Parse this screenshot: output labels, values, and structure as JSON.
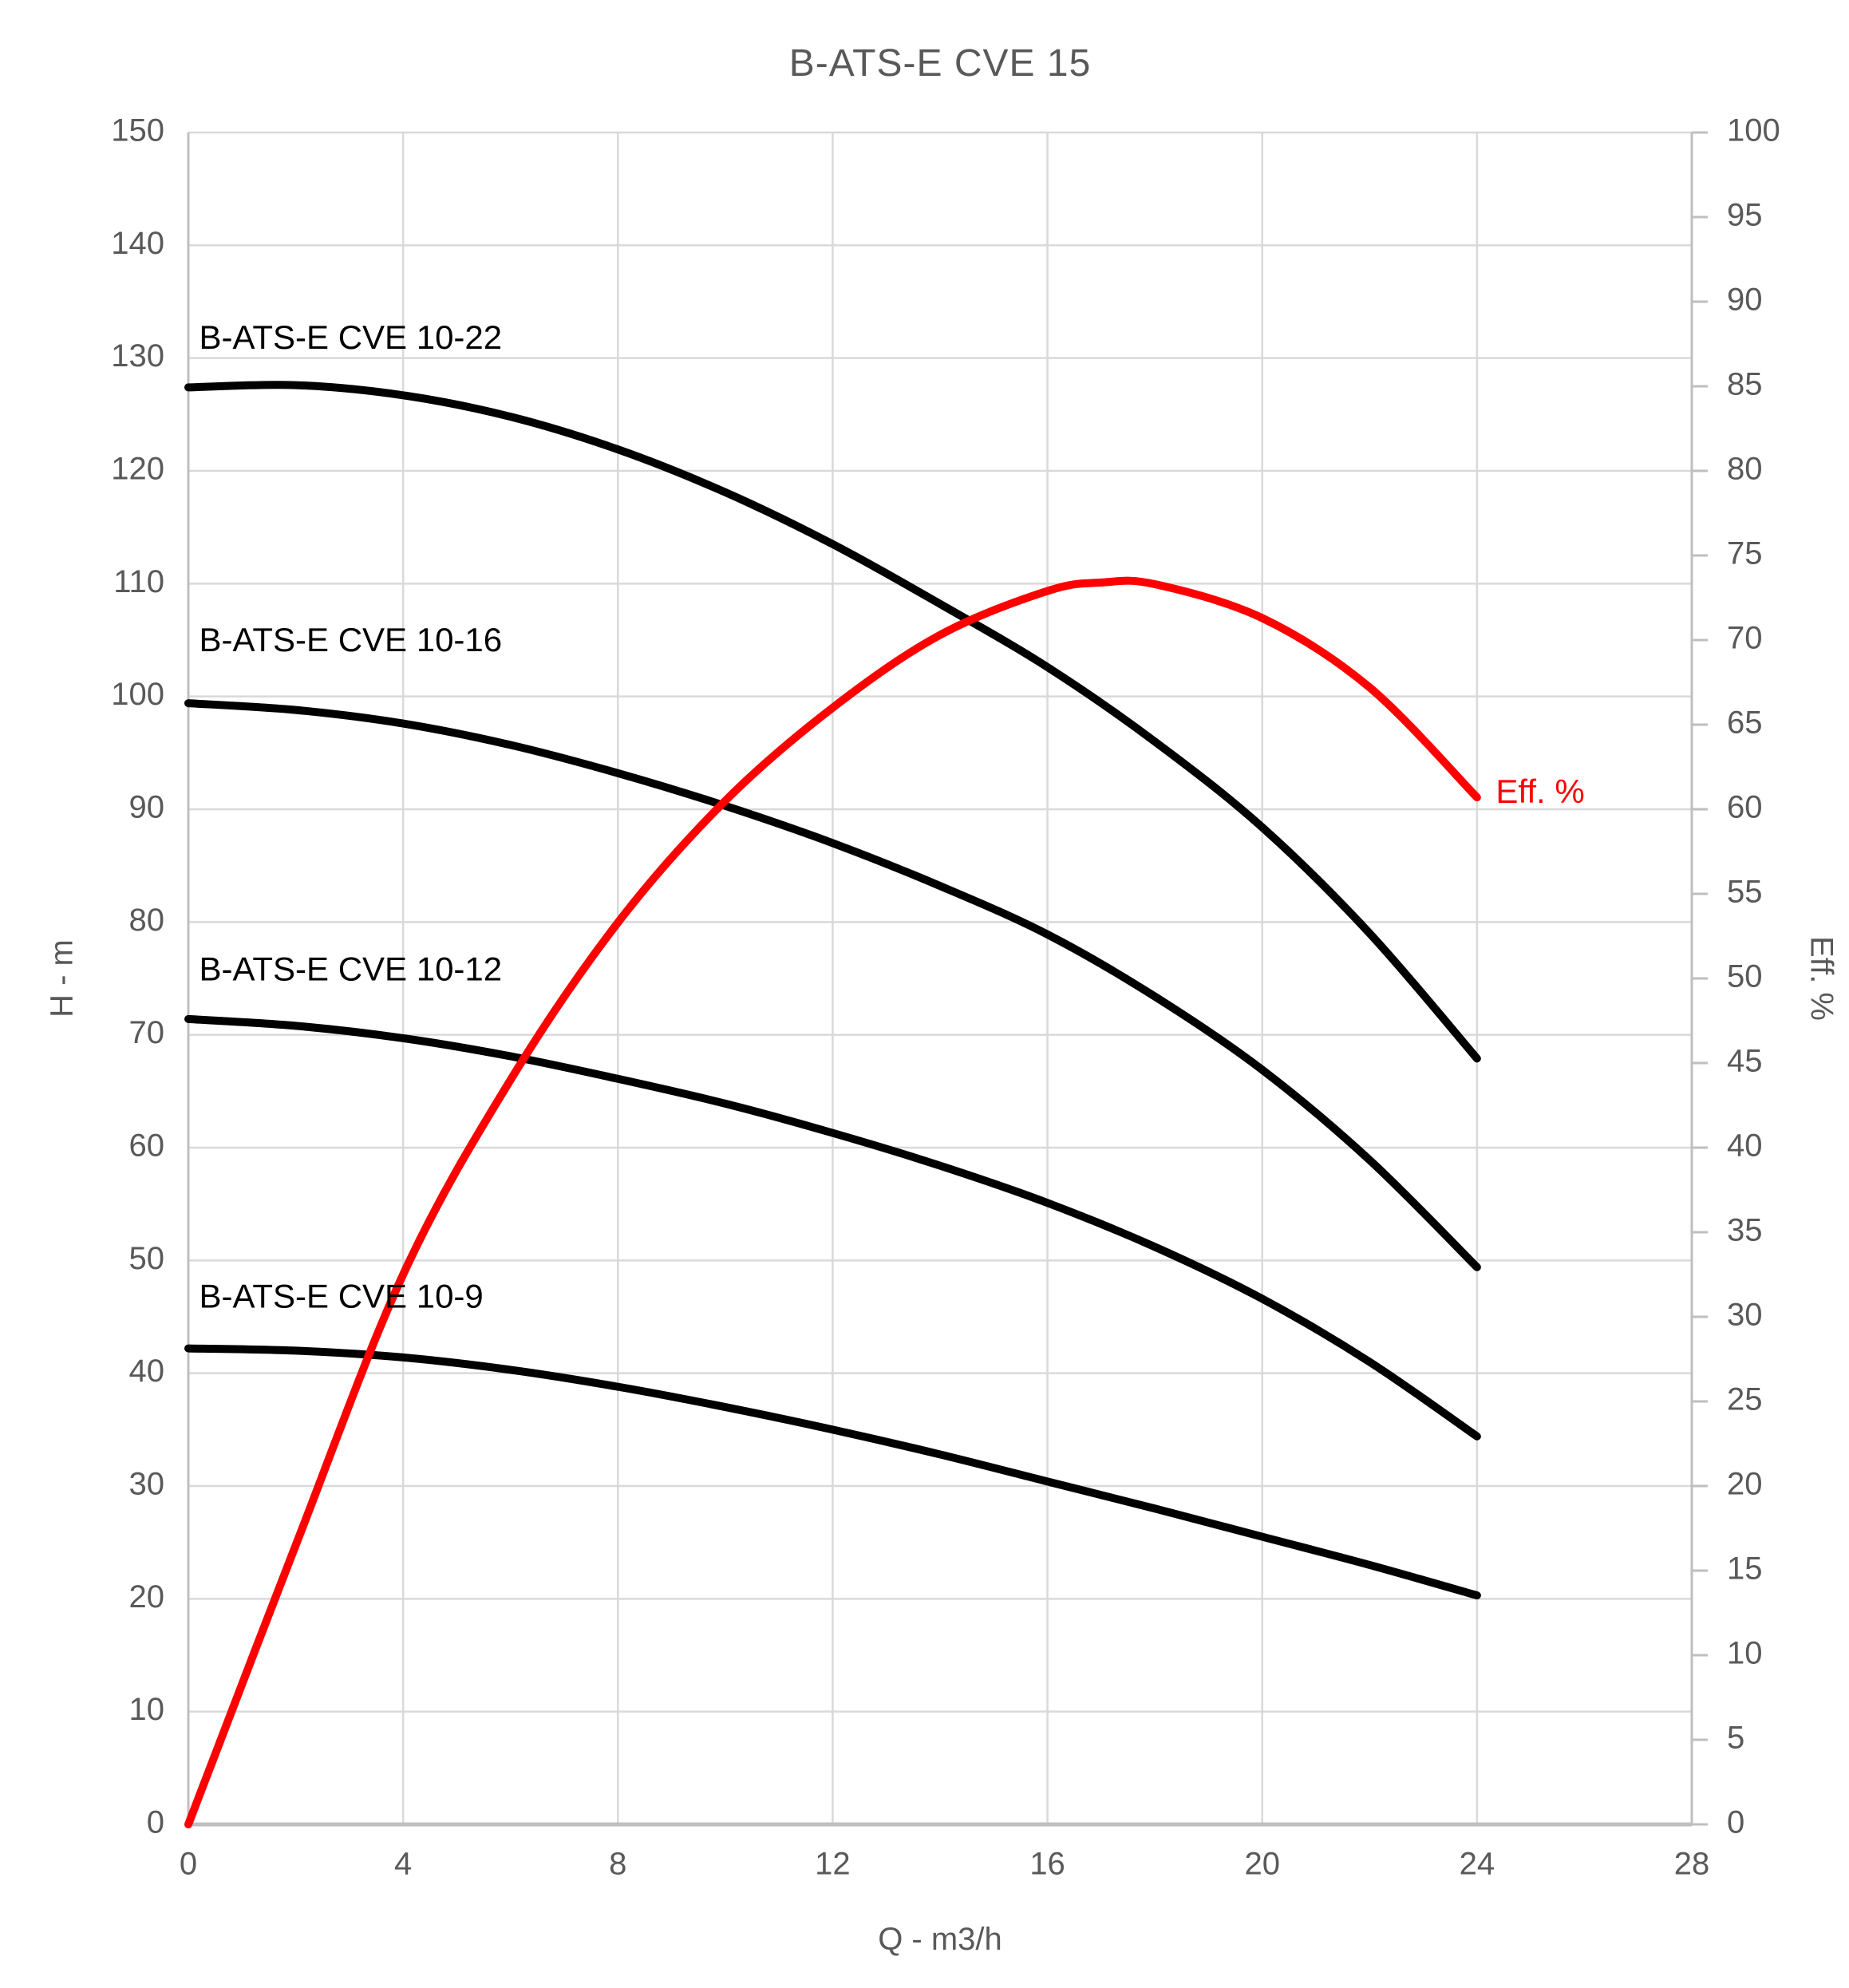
{
  "title": "B-ATS-E CVE 15",
  "colors": {
    "background": "#ffffff",
    "curve_black": "#000000",
    "efficiency_red": "#ff0000",
    "gridline": "#d9d9d9",
    "axis_line": "#bfbfbf",
    "tick_text": "#595959",
    "title_text": "#595959"
  },
  "chart_data": {
    "type": "line",
    "title": "B-ATS-E CVE 15",
    "xlabel": "Q - m3/h",
    "ylabel_left": "H - m",
    "ylabel_right": "Eff. %",
    "x_axis": {
      "min": 0,
      "max": 28,
      "tick_step": 4
    },
    "y_axis_left": {
      "min": 0,
      "max": 150,
      "tick_step": 10
    },
    "y_axis_right": {
      "min": 0,
      "max": 100,
      "tick_step": 5
    },
    "grid": {
      "horizontal_every_left_units": 10,
      "vertical_every_x_units": 4
    },
    "legend_position": "none",
    "series": [
      {
        "name": "B-ATS-E CVE 10-22",
        "axis": "left",
        "color": "#000000",
        "x": [
          0,
          2,
          4,
          6,
          8,
          10,
          12,
          14,
          16,
          18,
          20,
          22,
          24
        ],
        "values": [
          127.4,
          127.6,
          126.7,
          124.8,
          121.9,
          118.1,
          113.5,
          108.2,
          102.6,
          96.0,
          88.4,
          79.0,
          67.9
        ],
        "label": {
          "text": "B-ATS-E CVE 10-22",
          "x": 0.2,
          "y": 131.6
        }
      },
      {
        "name": "B-ATS-E CVE 10-16",
        "axis": "left",
        "color": "#000000",
        "x": [
          0,
          2,
          4,
          6,
          8,
          10,
          12,
          14,
          16,
          18,
          20,
          22,
          24
        ],
        "values": [
          99.4,
          98.8,
          97.6,
          95.7,
          93.2,
          90.3,
          87.0,
          83.2,
          78.9,
          73.4,
          66.9,
          58.9,
          49.4
        ],
        "label": {
          "text": "B-ATS-E CVE 10-16",
          "x": 0.2,
          "y": 104.8
        }
      },
      {
        "name": "B-ATS-E CVE 10-12",
        "axis": "left",
        "color": "#000000",
        "x": [
          0,
          2,
          4,
          6,
          8,
          10,
          12,
          14,
          16,
          18,
          20,
          22,
          24
        ],
        "values": [
          71.4,
          70.8,
          69.7,
          68.1,
          66.1,
          63.9,
          61.3,
          58.4,
          55.1,
          51.2,
          46.6,
          41.0,
          34.4
        ],
        "label": {
          "text": "B-ATS-E CVE 10-12",
          "x": 0.2,
          "y": 75.6
        }
      },
      {
        "name": "B-ATS-E CVE 10-9",
        "axis": "left",
        "color": "#000000",
        "x": [
          0,
          2,
          4,
          6,
          8,
          10,
          12,
          14,
          16,
          18,
          20,
          22,
          24
        ],
        "values": [
          42.2,
          42.0,
          41.4,
          40.3,
          38.8,
          37.0,
          35.0,
          32.8,
          30.4,
          28.0,
          25.5,
          23.0,
          20.3
        ],
        "label": {
          "text": "B-ATS-E CVE 10-9",
          "x": 0.2,
          "y": 46.6
        }
      },
      {
        "name": "Eff. %",
        "axis": "right",
        "color": "#ff0000",
        "x": [
          0,
          2,
          4,
          6,
          8,
          10,
          12,
          14,
          16,
          17,
          18,
          20,
          22,
          24
        ],
        "values": [
          0,
          16.5,
          32.5,
          44.0,
          53.3,
          60.5,
          66.0,
          70.3,
          72.9,
          73.4,
          73.3,
          71.3,
          67.2,
          60.7
        ],
        "label": {
          "text": "Eff. %",
          "x": 24.35,
          "y": 60.9
        }
      }
    ]
  }
}
